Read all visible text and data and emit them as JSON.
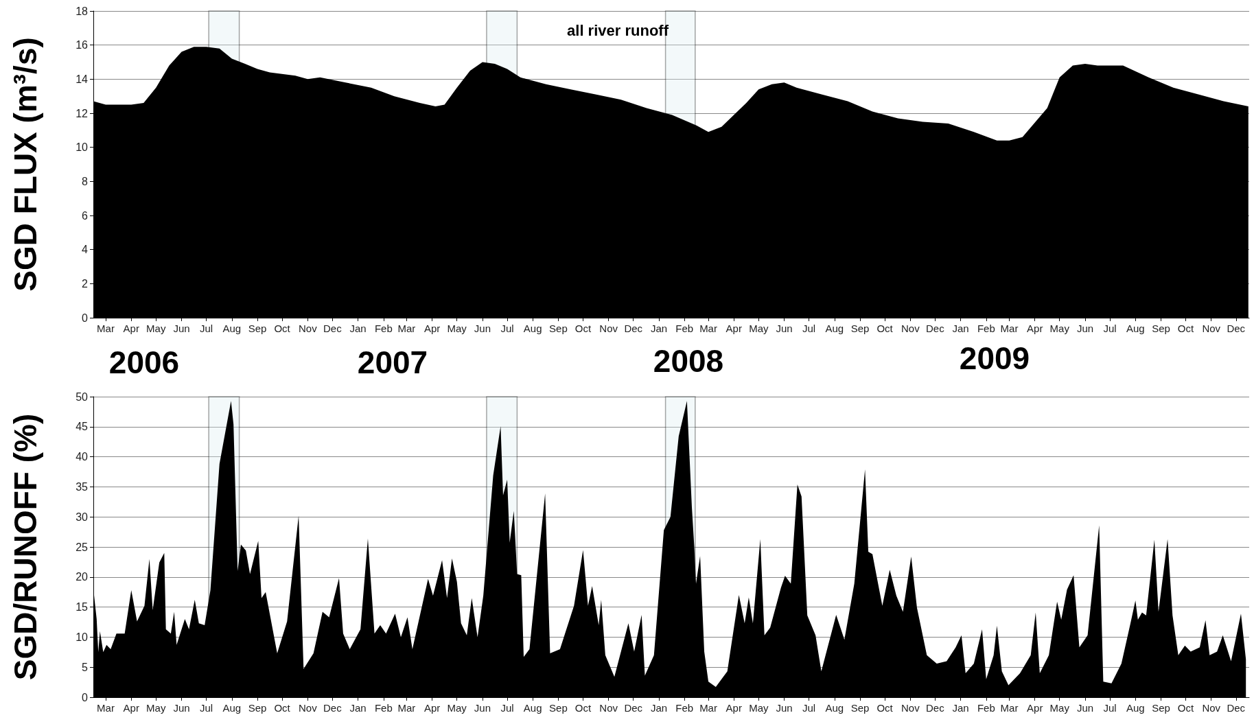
{
  "chart_data": [
    {
      "type": "area",
      "ylabel": "SGD FLUX (m³/s)",
      "xlim": [
        "2006-03-01",
        "2010-01-01"
      ],
      "ylim": [
        0,
        18
      ],
      "yticks": [
        0,
        2,
        4,
        6,
        8,
        10,
        12,
        14,
        16,
        18
      ],
      "grid": "y",
      "xticks": [
        {
          "value": "2006-03-16",
          "label": "Mar"
        },
        {
          "value": "2006-04-16",
          "label": "Apr"
        },
        {
          "value": "2006-05-16",
          "label": "May"
        },
        {
          "value": "2006-06-16",
          "label": "Jun"
        },
        {
          "value": "2006-07-16",
          "label": "Jul"
        },
        {
          "value": "2006-08-16",
          "label": "Aug"
        },
        {
          "value": "2006-09-16",
          "label": "Sep"
        },
        {
          "value": "2006-10-16",
          "label": "Oct"
        },
        {
          "value": "2006-11-16",
          "label": "Nov"
        },
        {
          "value": "2006-12-16",
          "label": "Dec"
        },
        {
          "value": "2007-01-16",
          "label": "Jan"
        },
        {
          "value": "2007-02-16",
          "label": "Feb"
        },
        {
          "value": "2007-03-16",
          "label": "Mar"
        },
        {
          "value": "2007-04-16",
          "label": "Apr"
        },
        {
          "value": "2007-05-16",
          "label": "May"
        },
        {
          "value": "2007-06-16",
          "label": "Jun"
        },
        {
          "value": "2007-07-16",
          "label": "Jul"
        },
        {
          "value": "2007-08-16",
          "label": "Aug"
        },
        {
          "value": "2007-09-16",
          "label": "Sep"
        },
        {
          "value": "2007-10-16",
          "label": "Oct"
        },
        {
          "value": "2007-11-16",
          "label": "Nov"
        },
        {
          "value": "2007-12-16",
          "label": "Dec"
        },
        {
          "value": "2008-01-16",
          "label": "Jan"
        },
        {
          "value": "2008-02-16",
          "label": "Feb"
        },
        {
          "value": "2008-03-16",
          "label": "Mar"
        },
        {
          "value": "2008-04-16",
          "label": "Apr"
        },
        {
          "value": "2008-05-16",
          "label": "May"
        },
        {
          "value": "2008-06-16",
          "label": "Jun"
        },
        {
          "value": "2008-07-16",
          "label": "Jul"
        },
        {
          "value": "2008-08-16",
          "label": "Aug"
        },
        {
          "value": "2008-09-16",
          "label": "Sep"
        },
        {
          "value": "2008-10-16",
          "label": "Oct"
        },
        {
          "value": "2008-11-16",
          "label": "Nov"
        },
        {
          "value": "2008-12-16",
          "label": "Dec"
        },
        {
          "value": "2009-01-16",
          "label": "Jan"
        },
        {
          "value": "2009-02-16",
          "label": "Feb"
        },
        {
          "value": "2009-03-16",
          "label": "Mar"
        },
        {
          "value": "2009-04-16",
          "label": "Apr"
        },
        {
          "value": "2009-05-16",
          "label": "May"
        },
        {
          "value": "2009-06-16",
          "label": "Jun"
        },
        {
          "value": "2009-07-16",
          "label": "Jul"
        },
        {
          "value": "2009-08-16",
          "label": "Aug"
        },
        {
          "value": "2009-09-16",
          "label": "Sep"
        },
        {
          "value": "2009-10-16",
          "label": "Oct"
        },
        {
          "value": "2009-11-16",
          "label": "Nov"
        },
        {
          "value": "2009-12-16",
          "label": "Dec"
        }
      ],
      "annotations": [
        "2006",
        "2007",
        "2008",
        "2009"
      ],
      "bands": [
        {
          "axis": "x",
          "from": "2006-07-19",
          "to": "2006-08-25",
          "color": "#ddeef2"
        },
        {
          "axis": "x",
          "from": "2007-06-21",
          "to": "2007-07-28",
          "color": "#ddeef2"
        },
        {
          "axis": "x",
          "from": "2008-01-24",
          "to": "2008-02-29",
          "color": "#ddeef2"
        }
      ],
      "series": [
        {
          "name": "all river runoff",
          "color": "#000000",
          "x": [
            "2006-03-01",
            "2006-03-16",
            "2006-04-16",
            "2006-05-01",
            "2006-05-16",
            "2006-06-01",
            "2006-06-16",
            "2006-07-01",
            "2006-07-16",
            "2006-08-01",
            "2006-08-16",
            "2006-09-01",
            "2006-09-16",
            "2006-10-01",
            "2006-11-01",
            "2006-11-16",
            "2006-12-01",
            "2007-01-01",
            "2007-02-01",
            "2007-03-01",
            "2007-04-01",
            "2007-04-20",
            "2007-05-01",
            "2007-05-16",
            "2007-06-01",
            "2007-06-16",
            "2007-07-01",
            "2007-07-16",
            "2007-08-01",
            "2007-09-01",
            "2007-10-01",
            "2007-11-01",
            "2007-12-01",
            "2008-01-01",
            "2008-02-01",
            "2008-03-01",
            "2008-03-16",
            "2008-04-01",
            "2008-05-01",
            "2008-05-16",
            "2008-06-01",
            "2008-06-16",
            "2008-07-01",
            "2008-08-01",
            "2008-09-01",
            "2008-10-01",
            "2008-11-01",
            "2008-12-01",
            "2009-01-01",
            "2009-02-01",
            "2009-03-01",
            "2009-03-16",
            "2009-04-01",
            "2009-05-01",
            "2009-05-16",
            "2009-06-01",
            "2009-06-16",
            "2009-07-01",
            "2009-08-01",
            "2009-09-01",
            "2009-10-01",
            "2009-11-01",
            "2009-12-01",
            "2009-12-31"
          ],
          "values": [
            12.7,
            12.5,
            12.5,
            12.6,
            13.5,
            14.8,
            15.6,
            15.9,
            15.9,
            15.8,
            15.2,
            14.9,
            14.6,
            14.4,
            14.2,
            14.0,
            14.1,
            13.8,
            13.5,
            13.0,
            12.6,
            12.4,
            12.5,
            13.5,
            14.5,
            15.0,
            14.9,
            14.6,
            14.1,
            13.7,
            13.4,
            13.1,
            12.8,
            12.3,
            11.9,
            11.3,
            10.9,
            11.2,
            12.6,
            13.4,
            13.7,
            13.8,
            13.5,
            13.1,
            12.7,
            12.1,
            11.7,
            11.5,
            11.4,
            10.9,
            10.4,
            10.4,
            10.6,
            12.3,
            14.1,
            14.8,
            14.9,
            14.8,
            14.8,
            14.1,
            13.5,
            13.1,
            12.7,
            12.4
          ]
        }
      ]
    },
    {
      "type": "area",
      "ylabel": "SGD/RUNOFF (%)",
      "xlim": [
        "2006-03-01",
        "2010-01-01"
      ],
      "ylim": [
        0,
        50
      ],
      "yticks": [
        0,
        5,
        10,
        15,
        20,
        25,
        30,
        35,
        40,
        45,
        50
      ],
      "grid": "y",
      "xticks": [
        {
          "value": "2006-03-16",
          "label": "Mar"
        },
        {
          "value": "2006-04-16",
          "label": "Apr"
        },
        {
          "value": "2006-05-16",
          "label": "May"
        },
        {
          "value": "2006-06-16",
          "label": "Jun"
        },
        {
          "value": "2006-07-16",
          "label": "Jul"
        },
        {
          "value": "2006-08-16",
          "label": "Aug"
        },
        {
          "value": "2006-09-16",
          "label": "Sep"
        },
        {
          "value": "2006-10-16",
          "label": "Oct"
        },
        {
          "value": "2006-11-16",
          "label": "Nov"
        },
        {
          "value": "2006-12-16",
          "label": "Dec"
        },
        {
          "value": "2007-01-16",
          "label": "Jan"
        },
        {
          "value": "2007-02-16",
          "label": "Feb"
        },
        {
          "value": "2007-03-16",
          "label": "Mar"
        },
        {
          "value": "2007-04-16",
          "label": "Apr"
        },
        {
          "value": "2007-05-16",
          "label": "May"
        },
        {
          "value": "2007-06-16",
          "label": "Jun"
        },
        {
          "value": "2007-07-16",
          "label": "Jul"
        },
        {
          "value": "2007-08-16",
          "label": "Aug"
        },
        {
          "value": "2007-09-16",
          "label": "Sep"
        },
        {
          "value": "2007-10-16",
          "label": "Oct"
        },
        {
          "value": "2007-11-16",
          "label": "Nov"
        },
        {
          "value": "2007-12-16",
          "label": "Dec"
        },
        {
          "value": "2008-01-16",
          "label": "Jan"
        },
        {
          "value": "2008-02-16",
          "label": "Feb"
        },
        {
          "value": "2008-03-16",
          "label": "Mar"
        },
        {
          "value": "2008-04-16",
          "label": "Apr"
        },
        {
          "value": "2008-05-16",
          "label": "May"
        },
        {
          "value": "2008-06-16",
          "label": "Jun"
        },
        {
          "value": "2008-07-16",
          "label": "Jul"
        },
        {
          "value": "2008-08-16",
          "label": "Aug"
        },
        {
          "value": "2008-09-16",
          "label": "Sep"
        },
        {
          "value": "2008-10-16",
          "label": "Oct"
        },
        {
          "value": "2008-11-16",
          "label": "Nov"
        },
        {
          "value": "2008-12-16",
          "label": "Dec"
        },
        {
          "value": "2009-01-16",
          "label": "Jan"
        },
        {
          "value": "2009-02-16",
          "label": "Feb"
        },
        {
          "value": "2009-03-16",
          "label": "Mar"
        },
        {
          "value": "2009-04-16",
          "label": "Apr"
        },
        {
          "value": "2009-05-16",
          "label": "May"
        },
        {
          "value": "2009-06-16",
          "label": "Jun"
        },
        {
          "value": "2009-07-16",
          "label": "Jul"
        },
        {
          "value": "2009-08-16",
          "label": "Aug"
        },
        {
          "value": "2009-09-16",
          "label": "Sep"
        },
        {
          "value": "2009-10-16",
          "label": "Oct"
        },
        {
          "value": "2009-11-16",
          "label": "Nov"
        },
        {
          "value": "2009-12-16",
          "label": "Dec"
        }
      ],
      "bands": [
        {
          "axis": "x",
          "from": "2006-07-19",
          "to": "2006-08-25",
          "color": "#ddeef2"
        },
        {
          "axis": "x",
          "from": "2007-06-21",
          "to": "2007-07-28",
          "color": "#ddeef2"
        },
        {
          "axis": "x",
          "from": "2008-01-24",
          "to": "2008-02-29",
          "color": "#ddeef2"
        }
      ],
      "series": [
        {
          "color": "#000000",
          "x": [
            "2006-03-01",
            "2006-03-05",
            "2006-03-07",
            "2006-03-09",
            "2006-03-13",
            "2006-03-17",
            "2006-03-22",
            "2006-03-29",
            "2006-04-08",
            "2006-04-16",
            "2006-04-23",
            "2006-05-02",
            "2006-05-08",
            "2006-05-12",
            "2006-05-20",
            "2006-05-26",
            "2006-05-28",
            "2006-06-03",
            "2006-06-07",
            "2006-06-10",
            "2006-06-20",
            "2006-06-25",
            "2006-07-02",
            "2006-07-07",
            "2006-07-14",
            "2006-07-21",
            "2006-08-01",
            "2006-08-15",
            "2006-08-18",
            "2006-08-23",
            "2006-08-27",
            "2006-09-02",
            "2006-09-07",
            "2006-09-17",
            "2006-09-21",
            "2006-09-26",
            "2006-10-10",
            "2006-10-22",
            "2006-11-05",
            "2006-11-11",
            "2006-11-23",
            "2006-12-04",
            "2006-12-12",
            "2006-12-24",
            "2006-12-29",
            "2007-01-06",
            "2007-01-19",
            "2007-01-28",
            "2007-02-05",
            "2007-02-12",
            "2007-02-19",
            "2007-03-02",
            "2007-03-09",
            "2007-03-17",
            "2007-03-23",
            "2007-04-11",
            "2007-04-17",
            "2007-04-28",
            "2007-05-04",
            "2007-05-10",
            "2007-05-16",
            "2007-05-21",
            "2007-05-28",
            "2007-06-03",
            "2007-06-10",
            "2007-06-17",
            "2007-06-29",
            "2007-07-08",
            "2007-07-11",
            "2007-07-16",
            "2007-07-19",
            "2007-07-24",
            "2007-07-28",
            "2007-08-02",
            "2007-08-05",
            "2007-08-12",
            "2007-08-31",
            "2007-09-06",
            "2007-09-18",
            "2007-10-05",
            "2007-10-16",
            "2007-10-22",
            "2007-10-27",
            "2007-11-04",
            "2007-11-07",
            "2007-11-12",
            "2007-11-23",
            "2007-12-10",
            "2007-12-17",
            "2007-12-26",
            "2007-12-30",
            "2008-01-10",
            "2008-01-22",
            "2008-01-30",
            "2008-02-09",
            "2008-02-19",
            "2008-02-25",
            "2008-02-28",
            "2008-03-01",
            "2008-03-06",
            "2008-03-11",
            "2008-03-16",
            "2008-03-25",
            "2008-04-08",
            "2008-04-22",
            "2008-04-29",
            "2008-05-04",
            "2008-05-09",
            "2008-05-18",
            "2008-05-23",
            "2008-05-30",
            "2008-06-12",
            "2008-06-17",
            "2008-06-24",
            "2008-07-02",
            "2008-07-07",
            "2008-07-14",
            "2008-07-24",
            "2008-07-31",
            "2008-08-18",
            "2008-08-28",
            "2008-09-09",
            "2008-09-22",
            "2008-09-26",
            "2008-10-01",
            "2008-10-06",
            "2008-10-13",
            "2008-10-22",
            "2008-10-30",
            "2008-11-07",
            "2008-11-17",
            "2008-11-24",
            "2008-12-06",
            "2008-12-18",
            "2008-12-30",
            "2009-01-10",
            "2009-01-17",
            "2009-01-22",
            "2009-02-01",
            "2009-02-11",
            "2009-02-16",
            "2009-02-25",
            "2009-03-01",
            "2009-03-07",
            "2009-03-15",
            "2009-03-29",
            "2009-04-11",
            "2009-04-17",
            "2009-04-22",
            "2009-05-03",
            "2009-05-13",
            "2009-05-18",
            "2009-05-25",
            "2009-06-02",
            "2009-06-09",
            "2009-06-19",
            "2009-07-03",
            "2009-07-08",
            "2009-07-18",
            "2009-07-30",
            "2009-08-10",
            "2009-08-16",
            "2009-08-19",
            "2009-08-24",
            "2009-08-29",
            "2009-09-08",
            "2009-09-13",
            "2009-09-24",
            "2009-09-30",
            "2009-10-07",
            "2009-10-15",
            "2009-10-22",
            "2009-11-02",
            "2009-11-09",
            "2009-11-14",
            "2009-11-23",
            "2009-11-30",
            "2009-12-10",
            "2009-12-22",
            "2009-12-28"
          ],
          "values": [
            18,
            13,
            7.5,
            11,
            7.5,
            8.7,
            8,
            10.6,
            10.6,
            17.8,
            12.6,
            15.2,
            23,
            14.5,
            22.4,
            24,
            11.3,
            10.6,
            14.2,
            8.7,
            13,
            11.3,
            16.2,
            12.3,
            12,
            17.8,
            38.8,
            49.3,
            45.4,
            21,
            25.4,
            24.4,
            20.5,
            26,
            16.5,
            17.5,
            7.3,
            12.6,
            30.2,
            4.7,
            7.3,
            14.2,
            13.3,
            19.8,
            10.6,
            8,
            11.3,
            26.4,
            10.6,
            12,
            10.6,
            13.9,
            10,
            13.3,
            8,
            19.7,
            16.9,
            22.8,
            16.5,
            23.1,
            19.2,
            12.3,
            10.3,
            16.5,
            10,
            16.9,
            36.9,
            45.1,
            33.6,
            36.2,
            25.7,
            31,
            20.5,
            20.3,
            6.7,
            8,
            33.9,
            7.3,
            8,
            15.2,
            24.5,
            15.2,
            18.5,
            12,
            16.2,
            7,
            3.4,
            12.3,
            7.6,
            13.7,
            3.6,
            7,
            27.8,
            30,
            43.4,
            49.3,
            31.5,
            24.8,
            18.9,
            23.5,
            7.6,
            2.6,
            1.7,
            4.3,
            17,
            12.3,
            16.6,
            12.3,
            26.3,
            10.3,
            11.6,
            18.2,
            20.2,
            18.9,
            35.4,
            33.4,
            13.6,
            10.3,
            4.3,
            13.7,
            9.6,
            18.9,
            37.9,
            24.2,
            23.8,
            20.2,
            15.2,
            21.2,
            16.9,
            14.2,
            23.4,
            14.9,
            7,
            5.6,
            6,
            8.3,
            10.3,
            4,
            5.6,
            11.3,
            3,
            7,
            11.9,
            4.3,
            2,
            4,
            7,
            14.1,
            4,
            7,
            15.9,
            12.9,
            17.9,
            20.3,
            8.3,
            10.3,
            28.6,
            2.6,
            2.3,
            5.6,
            12.3,
            16.1,
            12.9,
            14.1,
            13.6,
            26.2,
            14.2,
            26.3,
            13.6,
            7,
            8.6,
            7.6,
            8.3,
            12.8,
            7,
            7.6,
            10.3,
            6,
            13.9,
            6.3
          ]
        }
      ]
    }
  ]
}
